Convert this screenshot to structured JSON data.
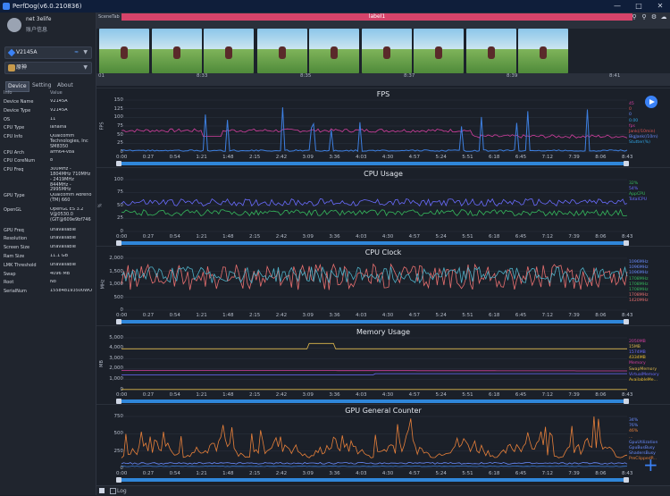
{
  "window": {
    "title": "PerfDog(v6.0.210836)"
  },
  "user": {
    "name": "net 3elife",
    "link": "账户信息"
  },
  "device_select": {
    "label": "V2145A"
  },
  "app_select": {
    "label": "原神"
  },
  "tabs": [
    "Device",
    "Setting",
    "About"
  ],
  "info_table": {
    "headers": [
      "Info",
      "Value"
    ],
    "rows": [
      [
        "Device Name",
        "V2145A"
      ],
      [
        "Device Type",
        "V2145A"
      ],
      [
        "OS",
        "11"
      ],
      [
        "CPU Type",
        "lahaina"
      ],
      [
        "CPU Info",
        "Qualcomm Technologies, Inc SM8350"
      ],
      [
        "CPU Arch",
        "arm64-v8a"
      ],
      [
        "CPU CoreNum",
        "8"
      ],
      [
        "CPU Freq",
        "300MHz - 1804MHz 710MHz - 2419MHz 844MHz - 2995MHz"
      ],
      [
        "GPU Type",
        "Qualcomm Adreno (TM) 660"
      ],
      [
        "OpenGL",
        "OpenGL ES 3.2 V@0530.0 (GIT@609e9bf746"
      ],
      [
        "GPU Freq",
        "unavailable"
      ],
      [
        "Resolution",
        "unavailable"
      ],
      [
        "Screen Size",
        "unavailable"
      ],
      [
        "Ram Size",
        "11.1 GB"
      ],
      [
        "LMK Threshold",
        "unavailable"
      ],
      [
        "Swap",
        "4096 MB"
      ],
      [
        "Root",
        "No"
      ],
      [
        "SerialNum",
        "155848193500WO"
      ]
    ]
  },
  "scene": {
    "tab_label": "SceneTab",
    "label": "label1",
    "time_labels": [
      "01",
      "8:33",
      "8:35",
      "8:37",
      "8:39",
      "8:41"
    ],
    "thumbnail_count": 9
  },
  "x_ticks": [
    "0:00",
    "0:27",
    "0:54",
    "1:21",
    "1:48",
    "2:15",
    "2:42",
    "3:09",
    "3:36",
    "4:03",
    "4:30",
    "4:57",
    "5:24",
    "5:51",
    "6:18",
    "6:45",
    "7:12",
    "7:39",
    "8:06",
    "8:43"
  ],
  "colors": {
    "accent": "#3b82f6",
    "label_bar": "#d6436a",
    "scroll": "#2f86d9"
  },
  "charts": [
    {
      "title": "FPS",
      "ylabel": "FPS",
      "yticks": [
        "150",
        "125",
        "100",
        "75",
        "50",
        "25",
        "0"
      ],
      "ylim": [
        0,
        150
      ],
      "legend": [
        {
          "text": "45",
          "color": "#d43fa0"
        },
        {
          "text": "0",
          "color": "#e05555"
        },
        {
          "text": "0",
          "color": "#6a8cff"
        },
        {
          "text": "0.00",
          "color": "#2fa6e6"
        },
        {
          "text": "fps",
          "color": "#d43fa0"
        },
        {
          "text": "Jank(/10min)",
          "color": "#e05555"
        },
        {
          "text": "BigJank(/10m)",
          "color": "#6a8cff"
        },
        {
          "text": "Stutter(%)",
          "color": "#2fa6e6"
        }
      ]
    },
    {
      "title": "CPU Usage",
      "ylabel": "%",
      "yticks": [
        "100",
        "75",
        "50",
        "25",
        "0"
      ],
      "ylim": [
        0,
        100
      ],
      "legend": [
        {
          "text": "32%",
          "color": "#35b85c"
        },
        {
          "text": "54%",
          "color": "#6a6cff"
        },
        {
          "text": "AppCPU",
          "color": "#35b85c"
        },
        {
          "text": "TotalCPU",
          "color": "#6a6cff"
        }
      ]
    },
    {
      "title": "CPU Clock",
      "ylabel": "MHz",
      "yticks": [
        "2,000",
        "1,500",
        "1,000",
        "500",
        "0"
      ],
      "ylim": [
        0,
        2200
      ],
      "legend": [
        {
          "text": "1096MHz",
          "color": "#6a8cff"
        },
        {
          "text": "1096MHz",
          "color": "#6a8cff"
        },
        {
          "text": "1096MHz",
          "color": "#6a8cff"
        },
        {
          "text": "1708MHz",
          "color": "#35b85c"
        },
        {
          "text": "1708MHz",
          "color": "#35b85c"
        },
        {
          "text": "1708MHz",
          "color": "#35b85c"
        },
        {
          "text": "1708MHz",
          "color": "#e86f6f"
        },
        {
          "text": "1420MHz",
          "color": "#e86f6f"
        }
      ]
    },
    {
      "title": "Memory Usage",
      "ylabel": "MB",
      "yticks": [
        "5,000",
        "4,000",
        "3,000",
        "2,000",
        "1,000",
        "0"
      ],
      "ylim": [
        0,
        5500
      ],
      "legend": [
        {
          "text": "2050MB",
          "color": "#d43fa0"
        },
        {
          "text": "15MB",
          "color": "#e0b94c"
        },
        {
          "text": "1574MB",
          "color": "#6a6cff"
        },
        {
          "text": "4334MB",
          "color": "#f0c030"
        },
        {
          "text": "Memory",
          "color": "#d43fa0"
        },
        {
          "text": "SwapMemory",
          "color": "#e0b94c"
        },
        {
          "text": "VirtualMemory",
          "color": "#6a6cff"
        },
        {
          "text": "AvailableMe...",
          "color": "#f0c030"
        }
      ]
    },
    {
      "title": "GPU General Counter",
      "ylabel": "",
      "yticks": [
        "750",
        "500",
        "250",
        "0"
      ],
      "ylim": [
        0,
        750
      ],
      "legend": [
        {
          "text": "34%",
          "color": "#6a8cff"
        },
        {
          "text": "76%",
          "color": "#6a8cff"
        },
        {
          "text": "46%",
          "color": "#e8803a"
        },
        {
          "text": "...",
          "color": "#e8803a"
        },
        {
          "text": "GpuUtilization",
          "color": "#6a8cff"
        },
        {
          "text": "GpuBusBusy",
          "color": "#6a8cff"
        },
        {
          "text": "ShadersBusy",
          "color": "#6a8cff"
        },
        {
          "text": "PreClippedP...",
          "color": "#e8803a"
        }
      ]
    }
  ],
  "bottom": {
    "log_label": "Log"
  }
}
